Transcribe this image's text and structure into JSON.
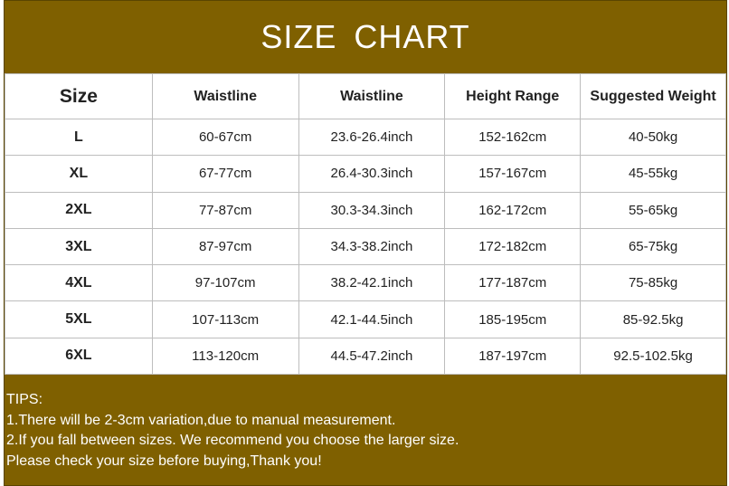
{
  "title": "SIZE  CHART",
  "headers": [
    "Size",
    "Waistline",
    "Waistline",
    "Height Range",
    "Suggested Weight"
  ],
  "rows": [
    [
      "L",
      "60-67cm",
      "23.6-26.4inch",
      "152-162cm",
      "40-50kg"
    ],
    [
      "XL",
      "67-77cm",
      "26.4-30.3inch",
      "157-167cm",
      "45-55kg"
    ],
    [
      "2XL",
      "77-87cm",
      "30.3-34.3inch",
      "162-172cm",
      "55-65kg"
    ],
    [
      "3XL",
      "87-97cm",
      "34.3-38.2inch",
      "172-182cm",
      "65-75kg"
    ],
    [
      "4XL",
      "97-107cm",
      "38.2-42.1inch",
      "177-187cm",
      "75-85kg"
    ],
    [
      "5XL",
      "107-113cm",
      "42.1-44.5inch",
      "185-195cm",
      "85-92.5kg"
    ],
    [
      "6XL",
      "113-120cm",
      "44.5-47.2inch",
      "187-197cm",
      "92.5-102.5kg"
    ]
  ],
  "tips": [
    "TIPS:",
    "1.There will be 2-3cm variation,due to manual measurement.",
    "2.If you fall between sizes. We recommend you choose the larger size.",
    "Please check your size before buying,Thank you!"
  ],
  "colors": {
    "banner": "#7f6000",
    "text": "#ffffff"
  }
}
